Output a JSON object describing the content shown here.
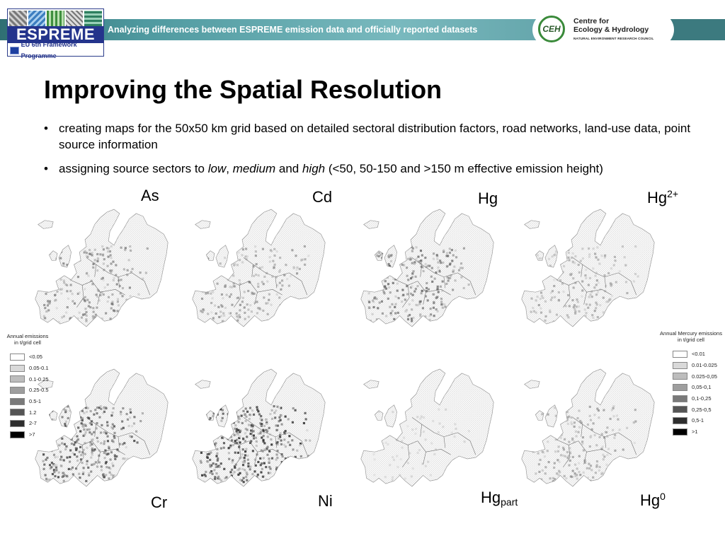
{
  "header": {
    "logo_text": "ESPREME",
    "logo_subtitle": "EU 6th Framework Programme",
    "title": "Analyzing differences between ESPREME emission data and officially reported datasets",
    "partner_logo": {
      "initials": "CEH",
      "line1": "Centre for",
      "line2": "Ecology & Hydrology",
      "line3": "NATURAL ENVIRONMENT RESEARCH COUNCIL"
    }
  },
  "slide": {
    "title": "Improving the Spatial Resolution",
    "bullet1": "creating maps for the 50x50 km grid based on detailed sectoral distribution factors, road networks, land-use data, point source information",
    "bullet2": {
      "before": "assigning source sectors to ",
      "low": "low",
      "sep": ", ",
      "medium": "medium",
      "and": " and ",
      "high": "high",
      "after": " (<50, 50-150 and >150 m effective emission height)"
    }
  },
  "maps": [
    {
      "label": "As",
      "sup": "",
      "sub": "",
      "intensity": 0.42
    },
    {
      "label": "Cd",
      "sup": "",
      "sub": "",
      "intensity": 0.36
    },
    {
      "label": "Hg",
      "sup": "",
      "sub": "",
      "intensity": 0.5
    },
    {
      "label": "Hg",
      "sup": "2+",
      "sub": "",
      "intensity": 0.32
    },
    {
      "label": "Cr",
      "sup": "",
      "sub": "",
      "intensity": 0.62
    },
    {
      "label": "Ni",
      "sup": "",
      "sub": "",
      "intensity": 0.72
    },
    {
      "label": "Hg",
      "sup": "",
      "sub": "part",
      "intensity": 0.06
    },
    {
      "label": "Hg",
      "sup": "0",
      "sub": "",
      "intensity": 0.34
    }
  ],
  "legends": {
    "left": {
      "title_line1": "Annual emissions",
      "title_line2": "in t/grid cell",
      "classes": [
        "<0.05",
        "0.05-0.1",
        "0.1-0.25",
        "0.25-0.5",
        "0.5-1",
        "1.2",
        "2-7",
        ">7"
      ],
      "colors": [
        "#ffffff",
        "#d9d9d9",
        "#bdbdbd",
        "#9e9e9e",
        "#7a7a7a",
        "#555555",
        "#2e2e2e",
        "#000000"
      ]
    },
    "right": {
      "title_line1": "Annual Mercury emissions",
      "title_line2": "in t/grid cell",
      "classes": [
        "<0.01",
        "0.01-0.025",
        "0.025-0,05",
        "0,05-0,1",
        "0,1-0,25",
        "0,25-0,5",
        "0,5-1",
        ">1"
      ],
      "colors": [
        "#ffffff",
        "#d9d9d9",
        "#bdbdbd",
        "#9e9e9e",
        "#7a7a7a",
        "#555555",
        "#2e2e2e",
        "#000000"
      ]
    }
  }
}
